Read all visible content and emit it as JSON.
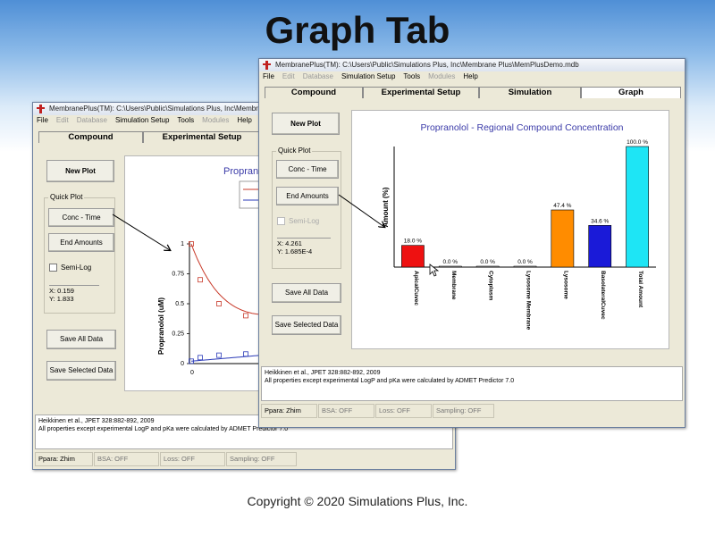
{
  "slide": {
    "title": "Graph Tab",
    "copyright": "Copyright © 2020 Simulations Plus, Inc."
  },
  "back_window": {
    "title": "MembranePlus(TM): C:\\Users\\Public\\Simulations Plus, Inc\\Membrane",
    "menu": [
      {
        "label": "File",
        "disabled": false
      },
      {
        "label": "Edit",
        "disabled": true
      },
      {
        "label": "Database",
        "disabled": true
      },
      {
        "label": "Simulation Setup",
        "disabled": false
      },
      {
        "label": "Tools",
        "disabled": false
      },
      {
        "label": "Modules",
        "disabled": true
      },
      {
        "label": "Help",
        "disabled": false
      }
    ],
    "tabs": [
      "Compound",
      "Experimental Setup"
    ],
    "buttons": {
      "new_plot": "New Plot",
      "conc_time": "Conc - Time",
      "end_amounts": "End Amounts",
      "save_all": "Save All Data",
      "save_selected": "Save Selected Data"
    },
    "quick_plot_label": "Quick Plot",
    "semi_log_label": "Semi-Log",
    "readout": {
      "x": "X: 0.159",
      "y": "Y: 1.833"
    },
    "plot": {
      "title_fragment": "Propran",
      "ylabel": "Propranolol (uM)",
      "yticks": [
        "1",
        "0.75",
        "0.5",
        "0.25",
        "0"
      ],
      "xtick": "0"
    },
    "refs": [
      "Heikkinen et al., JPET 328:882-892, 2009",
      "All properties except experimental LogP and pKa were calculated by ADMET Predictor 7.0"
    ],
    "status": [
      "Ppara: Zhim",
      "BSA: OFF",
      "Loss: OFF",
      "Sampling: OFF"
    ]
  },
  "front_window": {
    "title": "MembranePlus(TM): C:\\Users\\Public\\Simulations Plus, Inc\\Membrane Plus\\MemPlusDemo.mdb",
    "menu": [
      {
        "label": "File",
        "disabled": false
      },
      {
        "label": "Edit",
        "disabled": true
      },
      {
        "label": "Database",
        "disabled": true
      },
      {
        "label": "Simulation Setup",
        "disabled": false
      },
      {
        "label": "Tools",
        "disabled": false
      },
      {
        "label": "Modules",
        "disabled": true
      },
      {
        "label": "Help",
        "disabled": false
      }
    ],
    "tabs": [
      "Compound",
      "Experimental Setup",
      "Simulation",
      "Graph"
    ],
    "active_tab": "Graph",
    "buttons": {
      "new_plot": "New Plot",
      "conc_time": "Conc - Time",
      "end_amounts": "End Amounts",
      "save_all": "Save All Data",
      "save_selected": "Save Selected Data"
    },
    "quick_plot_label": "Quick Plot",
    "semi_log_label": "Semi-Log",
    "readout": {
      "x": "X: 4.261",
      "y": "Y: 1.685E-4"
    },
    "refs": [
      "Heikkinen et al., JPET 328:882-892, 2009",
      "All properties except experimental LogP and pKa were calculated by ADMET Predictor 7.0"
    ],
    "status": [
      "Ppara: Zhim",
      "BSA: OFF",
      "Loss: OFF",
      "Sampling: OFF"
    ]
  },
  "chart_data": [
    {
      "type": "bar",
      "title": "Propranolol - Regional Compound Concentration",
      "ylabel": "Amount (%)",
      "xlabel": "",
      "ylim": [
        0,
        100
      ],
      "categories": [
        "ApicalCuvec",
        "Membrane",
        "Cytoplasm",
        "Lysosome Membrane",
        "Lysosome",
        "BasolateralCuvec",
        "Total Amount"
      ],
      "values": [
        18.0,
        0.0,
        0.0,
        0.0,
        47.4,
        34.6,
        100.0
      ],
      "data_labels": [
        "18.0 %",
        "0.0 %",
        "0.0 %",
        "0.0 %",
        "47.4 %",
        "34.6 %",
        "100.0 %"
      ],
      "colors": [
        "#ee1111",
        "#cccccc",
        "#cccccc",
        "#cccccc",
        "#ff8c00",
        "#1a1ad8",
        "#1ee5f5"
      ],
      "grid": false
    },
    {
      "type": "scatter",
      "title": "",
      "ylabel": "Propranolol (uM)",
      "ylim": [
        0,
        1
      ],
      "series": [
        {
          "values": [
            1.0,
            0.7,
            0.5,
            0.4
          ],
          "color": "#c83a2a"
        },
        {
          "values": [
            0.02,
            0.05,
            0.07,
            0.08
          ],
          "color": "#2a3ab8"
        }
      ]
    }
  ]
}
